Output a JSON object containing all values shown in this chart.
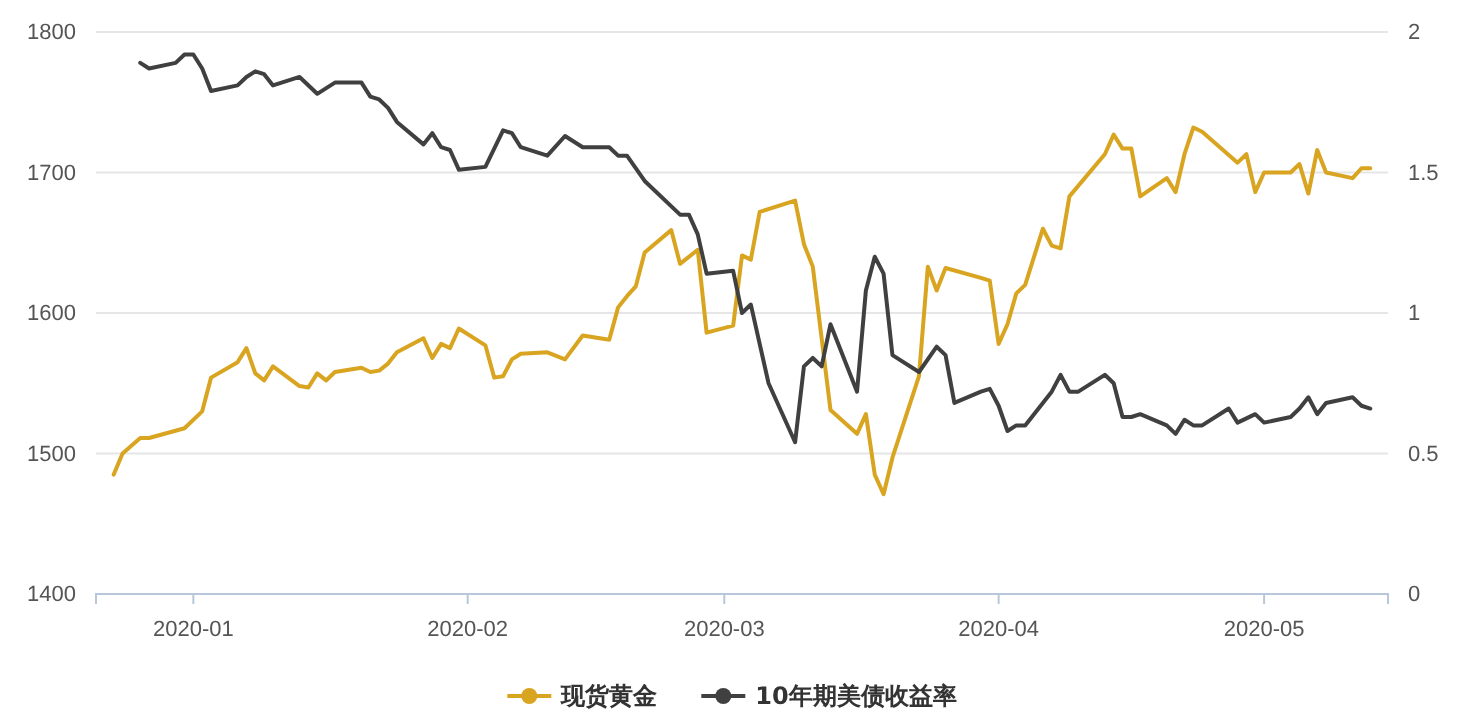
{
  "chart_data": {
    "type": "line",
    "xlim": [
      "2019-12-21",
      "2020-05-15"
    ],
    "xticks": [
      "2020-01",
      "2020-02",
      "2020-03",
      "2020-04",
      "2020-05"
    ],
    "ylim": [
      1400,
      1800
    ],
    "yticks": [
      1400,
      1500,
      1600,
      1700,
      1800
    ],
    "y2lim": [
      0,
      2
    ],
    "y2ticks": [
      0,
      0.5,
      1,
      1.5,
      2
    ],
    "grid": "y",
    "legend": "bottom",
    "series": [
      {
        "name": "现货黄金",
        "color": "#d9a521",
        "x": [
          "2019-12-23",
          "2019-12-24",
          "2019-12-26",
          "2019-12-27",
          "2019-12-31",
          "2020-01-02",
          "2020-01-03",
          "2020-01-06",
          "2020-01-07",
          "2020-01-08",
          "2020-01-09",
          "2020-01-10",
          "2020-01-13",
          "2020-01-14",
          "2020-01-15",
          "2020-01-16",
          "2020-01-17",
          "2020-01-20",
          "2020-01-21",
          "2020-01-22",
          "2020-01-23",
          "2020-01-24",
          "2020-01-27",
          "2020-01-28",
          "2020-01-29",
          "2020-01-30",
          "2020-01-31",
          "2020-02-03",
          "2020-02-04",
          "2020-02-05",
          "2020-02-06",
          "2020-02-07",
          "2020-02-10",
          "2020-02-12",
          "2020-02-14",
          "2020-02-17",
          "2020-02-18",
          "2020-02-19",
          "2020-02-20",
          "2020-02-21",
          "2020-02-24",
          "2020-02-25",
          "2020-02-27",
          "2020-02-28",
          "2020-03-02",
          "2020-03-03",
          "2020-03-04",
          "2020-03-05",
          "2020-03-09",
          "2020-03-10",
          "2020-03-11",
          "2020-03-13",
          "2020-03-16",
          "2020-03-17",
          "2020-03-18",
          "2020-03-19",
          "2020-03-20",
          "2020-03-23",
          "2020-03-24",
          "2020-03-25",
          "2020-03-26",
          "2020-03-30",
          "2020-03-31",
          "2020-04-01",
          "2020-04-02",
          "2020-04-03",
          "2020-04-04",
          "2020-04-06",
          "2020-04-07",
          "2020-04-08",
          "2020-04-09",
          "2020-04-13",
          "2020-04-14",
          "2020-04-15",
          "2020-04-16",
          "2020-04-17",
          "2020-04-20",
          "2020-04-21",
          "2020-04-22",
          "2020-04-23",
          "2020-04-24",
          "2020-04-28",
          "2020-04-29",
          "2020-04-30",
          "2020-05-01",
          "2020-05-04",
          "2020-05-05",
          "2020-05-06",
          "2020-05-07",
          "2020-05-08",
          "2020-05-11",
          "2020-05-12",
          "2020-05-13"
        ],
        "values": [
          1485,
          1500,
          1511,
          1511,
          1518,
          1530,
          1554,
          1565,
          1575,
          1557,
          1552,
          1562,
          1548,
          1547,
          1557,
          1552,
          1558,
          1561,
          1558,
          1559,
          1564,
          1572,
          1582,
          1568,
          1578,
          1575,
          1589,
          1577,
          1554,
          1555,
          1567,
          1571,
          1572,
          1567,
          1584,
          1581,
          1604,
          1612,
          1619,
          1643,
          1659,
          1635,
          1645,
          1586,
          1591,
          1641,
          1638,
          1672,
          1680,
          1649,
          1633,
          1531,
          1514,
          1528,
          1485,
          1471,
          1497,
          1555,
          1633,
          1616,
          1632,
          1625,
          1623,
          1578,
          1592,
          1614,
          1620,
          1660,
          1648,
          1646,
          1683,
          1713,
          1727,
          1717,
          1717,
          1683,
          1696,
          1686,
          1713,
          1732,
          1729,
          1707,
          1713,
          1686,
          1700,
          1700,
          1706,
          1685,
          1716,
          1700,
          1696,
          1703,
          1703
        ]
      },
      {
        "name": "10年期美债收益率",
        "color": "#404040",
        "axis": "y2",
        "x": [
          "2019-12-26",
          "2019-12-27",
          "2019-12-30",
          "2019-12-31",
          "2020-01-01",
          "2020-01-02",
          "2020-01-03",
          "2020-01-06",
          "2020-01-07",
          "2020-01-08",
          "2020-01-09",
          "2020-01-10",
          "2020-01-13",
          "2020-01-15",
          "2020-01-17",
          "2020-01-20",
          "2020-01-21",
          "2020-01-22",
          "2020-01-23",
          "2020-01-24",
          "2020-01-27",
          "2020-01-28",
          "2020-01-29",
          "2020-01-30",
          "2020-01-31",
          "2020-02-03",
          "2020-02-05",
          "2020-02-06",
          "2020-02-07",
          "2020-02-10",
          "2020-02-12",
          "2020-02-14",
          "2020-02-17",
          "2020-02-18",
          "2020-02-19",
          "2020-02-21",
          "2020-02-25",
          "2020-02-26",
          "2020-02-27",
          "2020-02-28",
          "2020-03-02",
          "2020-03-03",
          "2020-03-04",
          "2020-03-06",
          "2020-03-09",
          "2020-03-10",
          "2020-03-11",
          "2020-03-12",
          "2020-03-13",
          "2020-03-16",
          "2020-03-17",
          "2020-03-18",
          "2020-03-19",
          "2020-03-20",
          "2020-03-23",
          "2020-03-25",
          "2020-03-26",
          "2020-03-27",
          "2020-03-30",
          "2020-03-31",
          "2020-04-01",
          "2020-04-02",
          "2020-04-03",
          "2020-04-04",
          "2020-04-06",
          "2020-04-07",
          "2020-04-08",
          "2020-04-09",
          "2020-04-10",
          "2020-04-13",
          "2020-04-14",
          "2020-04-15",
          "2020-04-16",
          "2020-04-17",
          "2020-04-20",
          "2020-04-21",
          "2020-04-22",
          "2020-04-23",
          "2020-04-24",
          "2020-04-27",
          "2020-04-28",
          "2020-04-30",
          "2020-05-01",
          "2020-05-04",
          "2020-05-05",
          "2020-05-06",
          "2020-05-07",
          "2020-05-08",
          "2020-05-11",
          "2020-05-12",
          "2020-05-13"
        ],
        "values": [
          1.89,
          1.87,
          1.89,
          1.92,
          1.92,
          1.87,
          1.79,
          1.81,
          1.84,
          1.86,
          1.85,
          1.81,
          1.84,
          1.78,
          1.82,
          1.82,
          1.77,
          1.76,
          1.73,
          1.68,
          1.6,
          1.64,
          1.59,
          1.58,
          1.51,
          1.52,
          1.65,
          1.64,
          1.59,
          1.56,
          1.63,
          1.59,
          1.59,
          1.56,
          1.56,
          1.47,
          1.35,
          1.35,
          1.28,
          1.14,
          1.15,
          1.0,
          1.03,
          0.75,
          0.54,
          0.81,
          0.84,
          0.81,
          0.96,
          0.72,
          1.08,
          1.2,
          1.14,
          0.85,
          0.79,
          0.88,
          0.85,
          0.68,
          0.72,
          0.73,
          0.67,
          0.58,
          0.6,
          0.6,
          0.68,
          0.72,
          0.78,
          0.72,
          0.72,
          0.78,
          0.75,
          0.63,
          0.63,
          0.64,
          0.6,
          0.57,
          0.62,
          0.6,
          0.6,
          0.66,
          0.61,
          0.64,
          0.61,
          0.63,
          0.66,
          0.7,
          0.64,
          0.68,
          0.7,
          0.67,
          0.66
        ]
      }
    ]
  }
}
